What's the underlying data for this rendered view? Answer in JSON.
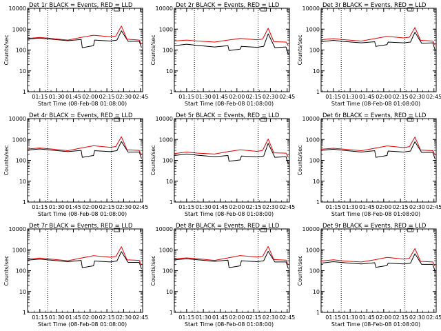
{
  "chart_data": [
    {
      "type": "line",
      "title": "Det 1r BLACK = Events, RED = LLD",
      "ylabel": "Counts/sec",
      "xlabel": "Start Time (08-Feb-08 01:08:00)",
      "x_ticks": [
        "01:15",
        "01:30",
        "01:45",
        "02:00",
        "02:15",
        "02:30",
        "02:45"
      ],
      "y_ticks": [
        "1",
        "10",
        "100",
        "1000",
        "10000"
      ],
      "ylim": [
        1,
        10000
      ],
      "y_scale": "log",
      "series": [
        {
          "color": "#000000",
          "x": [
            "01:04",
            "01:15",
            "01:25",
            "01:40",
            "01:52",
            "01:53",
            "02:03",
            "02:04",
            "02:18",
            "02:24",
            "02:28",
            "02:34",
            "02:44",
            "02:46"
          ],
          "y": [
            330,
            370,
            330,
            280,
            320,
            130,
            160,
            300,
            270,
            300,
            830,
            260,
            260,
            130
          ]
        },
        {
          "color": "#e00000",
          "x": [
            "01:04",
            "01:15",
            "01:25",
            "01:40",
            "01:52",
            "02:03",
            "02:18",
            "02:23",
            "02:28",
            "02:33",
            "02:44",
            "02:46"
          ],
          "y": [
            360,
            400,
            360,
            300,
            400,
            510,
            430,
            470,
            1400,
            330,
            300,
            190
          ]
        }
      ]
    },
    {
      "type": "line",
      "title": "Det 2r BLACK = Events, RED = LLD",
      "ylabel": "Counts/sec",
      "xlabel": "Start Time (08-Feb-08 01:08:00)",
      "x_ticks": [
        "01:15",
        "01:30",
        "01:45",
        "02:00",
        "02:15",
        "02:30",
        "02:45"
      ],
      "y_ticks": [
        "1",
        "10",
        "100",
        "1000",
        "10000"
      ],
      "ylim": [
        1,
        10000
      ],
      "y_scale": "log",
      "series": [
        {
          "color": "#000000",
          "x": [
            "01:04",
            "01:15",
            "01:25",
            "01:40",
            "01:52",
            "01:53",
            "02:03",
            "02:04",
            "02:18",
            "02:24",
            "02:28",
            "02:34",
            "02:44",
            "02:46"
          ],
          "y": [
            160,
            190,
            165,
            140,
            160,
            95,
            110,
            150,
            135,
            150,
            600,
            130,
            140,
            60
          ]
        },
        {
          "color": "#e00000",
          "x": [
            "01:04",
            "01:15",
            "01:25",
            "01:40",
            "01:52",
            "02:03",
            "02:18",
            "02:23",
            "02:28",
            "02:33",
            "02:44",
            "02:46"
          ],
          "y": [
            270,
            300,
            270,
            240,
            300,
            360,
            310,
            330,
            1100,
            250,
            240,
            160
          ]
        }
      ]
    },
    {
      "type": "line",
      "title": "Det 3r BLACK = Events, RED = LLD",
      "ylabel": "Counts/sec",
      "xlabel": "Start Time (08-Feb-08 01:08:00)",
      "x_ticks": [
        "01:15",
        "01:30",
        "01:45",
        "02:00",
        "02:15",
        "02:30",
        "02:45"
      ],
      "y_ticks": [
        "1",
        "10",
        "100",
        "1000",
        "10000"
      ],
      "ylim": [
        1,
        10000
      ],
      "y_scale": "log",
      "series": [
        {
          "color": "#000000",
          "x": [
            "01:04",
            "01:15",
            "01:25",
            "01:40",
            "01:52",
            "01:53",
            "02:03",
            "02:04",
            "02:18",
            "02:24",
            "02:28",
            "02:34",
            "02:44",
            "02:46"
          ],
          "y": [
            250,
            290,
            255,
            220,
            250,
            150,
            180,
            240,
            220,
            240,
            720,
            210,
            220,
            100
          ]
        },
        {
          "color": "#e00000",
          "x": [
            "01:04",
            "01:15",
            "01:25",
            "01:40",
            "01:52",
            "02:03",
            "02:18",
            "02:23",
            "02:28",
            "02:33",
            "02:44",
            "02:46"
          ],
          "y": [
            310,
            350,
            310,
            270,
            350,
            450,
            380,
            410,
            1200,
            290,
            270,
            170
          ]
        }
      ]
    },
    {
      "type": "line",
      "title": "Det 4r BLACK = Events, RED = LLD",
      "ylabel": "Counts/sec",
      "xlabel": "Start Time (08-Feb-08 01:08:00)",
      "x_ticks": [
        "01:15",
        "01:30",
        "01:45",
        "02:00",
        "02:15",
        "02:30",
        "02:45"
      ],
      "y_ticks": [
        "1",
        "10",
        "100",
        "1000",
        "10000"
      ],
      "ylim": [
        1,
        10000
      ],
      "y_scale": "log",
      "series": [
        {
          "color": "#000000",
          "x": [
            "01:04",
            "01:15",
            "01:25",
            "01:40",
            "01:52",
            "01:53",
            "02:03",
            "02:04",
            "02:18",
            "02:24",
            "02:28",
            "02:34",
            "02:44",
            "02:46"
          ],
          "y": [
            310,
            350,
            310,
            260,
            300,
            140,
            170,
            290,
            260,
            290,
            800,
            250,
            250,
            120
          ]
        },
        {
          "color": "#e00000",
          "x": [
            "01:04",
            "01:15",
            "01:25",
            "01:40",
            "01:52",
            "02:03",
            "02:18",
            "02:23",
            "02:28",
            "02:33",
            "02:44",
            "02:46"
          ],
          "y": [
            350,
            390,
            350,
            290,
            390,
            500,
            420,
            460,
            1350,
            320,
            300,
            180
          ]
        }
      ]
    },
    {
      "type": "line",
      "title": "Det 5r BLACK = Events, RED = LLD",
      "ylabel": "Counts/sec",
      "xlabel": "Start Time (08-Feb-08 01:08:00)",
      "x_ticks": [
        "01:15",
        "01:30",
        "01:45",
        "02:00",
        "02:15",
        "02:30",
        "02:45"
      ],
      "y_ticks": [
        "1",
        "10",
        "100",
        "1000",
        "10000"
      ],
      "ylim": [
        1,
        10000
      ],
      "y_scale": "log",
      "series": [
        {
          "color": "#000000",
          "x": [
            "01:04",
            "01:15",
            "01:25",
            "01:40",
            "01:52",
            "01:53",
            "02:03",
            "02:04",
            "02:18",
            "02:24",
            "02:28",
            "02:34",
            "02:44",
            "02:46"
          ],
          "y": [
            170,
            200,
            175,
            150,
            170,
            90,
            105,
            160,
            145,
            160,
            650,
            140,
            150,
            65
          ]
        },
        {
          "color": "#e00000",
          "x": [
            "01:04",
            "01:15",
            "01:25",
            "01:40",
            "01:52",
            "02:03",
            "02:18",
            "02:23",
            "02:28",
            "02:33",
            "02:44",
            "02:46"
          ],
          "y": [
            210,
            250,
            220,
            200,
            260,
            320,
            270,
            300,
            1050,
            230,
            220,
            140
          ]
        }
      ]
    },
    {
      "type": "line",
      "title": "Det 6r BLACK = Events, RED = LLD",
      "ylabel": "Counts/sec",
      "xlabel": "Start Time (08-Feb-08 01:08:00)",
      "x_ticks": [
        "01:15",
        "01:30",
        "01:45",
        "02:00",
        "02:15",
        "02:30",
        "02:45"
      ],
      "y_ticks": [
        "1",
        "10",
        "100",
        "1000",
        "10000"
      ],
      "ylim": [
        1,
        10000
      ],
      "y_scale": "log",
      "series": [
        {
          "color": "#000000",
          "x": [
            "01:04",
            "01:15",
            "01:25",
            "01:40",
            "01:52",
            "01:53",
            "02:03",
            "02:04",
            "02:18",
            "02:24",
            "02:28",
            "02:34",
            "02:44",
            "02:46"
          ],
          "y": [
            300,
            340,
            300,
            250,
            290,
            140,
            170,
            280,
            250,
            280,
            780,
            240,
            240,
            115
          ]
        },
        {
          "color": "#e00000",
          "x": [
            "01:04",
            "01:15",
            "01:25",
            "01:40",
            "01:52",
            "02:03",
            "02:18",
            "02:23",
            "02:28",
            "02:33",
            "02:44",
            "02:46"
          ],
          "y": [
            340,
            380,
            340,
            290,
            380,
            490,
            410,
            450,
            1300,
            310,
            290,
            175
          ]
        }
      ]
    },
    {
      "type": "line",
      "title": "Det 7r BLACK = Events, RED = LLD",
      "ylabel": "Counts/sec",
      "xlabel": "Start Time (08-Feb-08 01:08:00)",
      "x_ticks": [
        "01:15",
        "01:30",
        "01:45",
        "02:00",
        "02:15",
        "02:30",
        "02:45"
      ],
      "y_ticks": [
        "1",
        "10",
        "100",
        "1000",
        "10000"
      ],
      "ylim": [
        1,
        10000
      ],
      "y_scale": "log",
      "series": [
        {
          "color": "#000000",
          "x": [
            "01:04",
            "01:15",
            "01:25",
            "01:40",
            "01:52",
            "01:53",
            "02:03",
            "02:04",
            "02:18",
            "02:24",
            "02:28",
            "02:34",
            "02:44",
            "02:46"
          ],
          "y": [
            320,
            360,
            320,
            270,
            310,
            140,
            170,
            290,
            260,
            290,
            820,
            250,
            250,
            120
          ]
        },
        {
          "color": "#e00000",
          "x": [
            "01:04",
            "01:15",
            "01:25",
            "01:40",
            "01:52",
            "02:03",
            "02:18",
            "02:23",
            "02:28",
            "02:33",
            "02:44",
            "02:46"
          ],
          "y": [
            360,
            400,
            360,
            300,
            400,
            520,
            440,
            470,
            1400,
            330,
            310,
            185
          ]
        }
      ]
    },
    {
      "type": "line",
      "title": "Det 8r BLACK = Events, RED = LLD",
      "ylabel": "Counts/sec",
      "xlabel": "Start Time (08-Feb-08 01:08:00)",
      "x_ticks": [
        "01:15",
        "01:30",
        "01:45",
        "02:00",
        "02:15",
        "02:30",
        "02:45"
      ],
      "y_ticks": [
        "1",
        "10",
        "100",
        "1000",
        "10000"
      ],
      "ylim": [
        1,
        10000
      ],
      "y_scale": "log",
      "series": [
        {
          "color": "#000000",
          "x": [
            "01:04",
            "01:15",
            "01:25",
            "01:40",
            "01:52",
            "01:53",
            "02:03",
            "02:04",
            "02:18",
            "02:24",
            "02:28",
            "02:34",
            "02:44",
            "02:46"
          ],
          "y": [
            330,
            370,
            330,
            280,
            320,
            140,
            170,
            300,
            270,
            300,
            840,
            260,
            260,
            125
          ]
        },
        {
          "color": "#e00000",
          "x": [
            "01:04",
            "01:15",
            "01:25",
            "01:40",
            "01:52",
            "02:03",
            "02:18",
            "02:23",
            "02:28",
            "02:33",
            "02:44",
            "02:46"
          ],
          "y": [
            370,
            410,
            370,
            310,
            410,
            530,
            450,
            480,
            1450,
            340,
            320,
            190
          ]
        }
      ]
    },
    {
      "type": "line",
      "title": "Det 9r BLACK = Events, RED = LLD",
      "ylabel": "Counts/sec",
      "xlabel": "Start Time (08-Feb-08 01:08:00)",
      "x_ticks": [
        "01:15",
        "01:30",
        "01:45",
        "02:00",
        "02:15",
        "02:30",
        "02:45"
      ],
      "y_ticks": [
        "1",
        "10",
        "100",
        "1000",
        "10000"
      ],
      "ylim": [
        1,
        10000
      ],
      "y_scale": "log",
      "series": [
        {
          "color": "#000000",
          "x": [
            "01:04",
            "01:15",
            "01:25",
            "01:40",
            "01:52",
            "01:53",
            "02:03",
            "02:04",
            "02:18",
            "02:24",
            "02:28",
            "02:34",
            "02:44",
            "02:46"
          ],
          "y": [
            230,
            270,
            240,
            210,
            240,
            145,
            175,
            230,
            210,
            230,
            650,
            200,
            200,
            95
          ]
        },
        {
          "color": "#e00000",
          "x": [
            "01:04",
            "01:15",
            "01:25",
            "01:40",
            "01:52",
            "02:03",
            "02:18",
            "02:23",
            "02:28",
            "02:33",
            "02:44",
            "02:46"
          ],
          "y": [
            290,
            330,
            290,
            260,
            330,
            430,
            360,
            390,
            1150,
            280,
            260,
            165
          ]
        }
      ]
    }
  ]
}
